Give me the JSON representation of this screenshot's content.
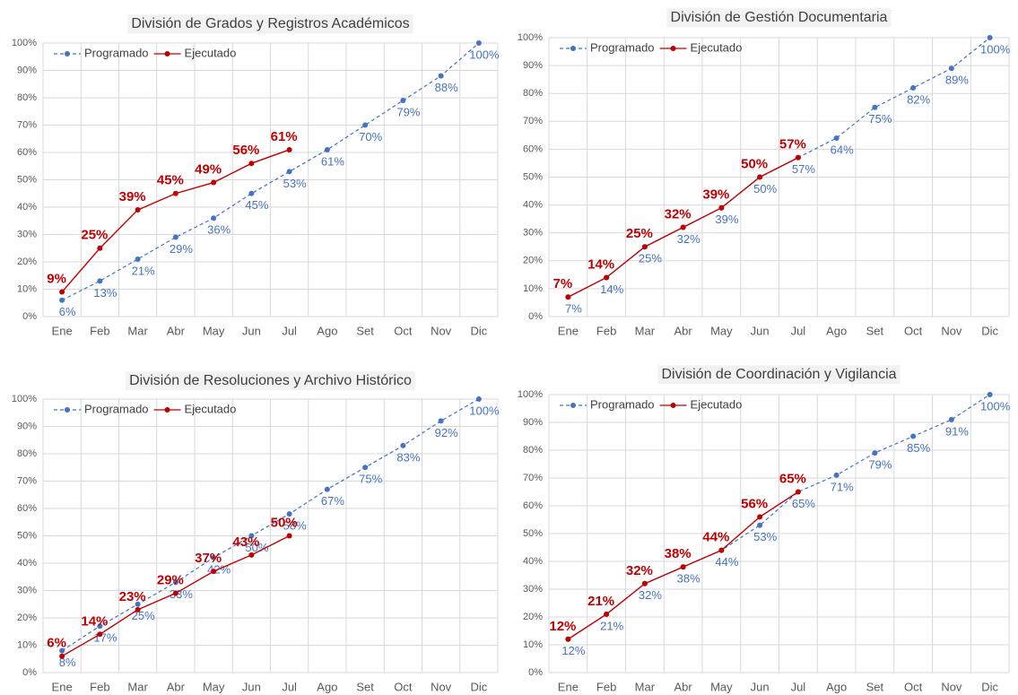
{
  "chart_data": [
    {
      "type": "line",
      "title": "División de Grados y Registros Académicos",
      "categories": [
        "Ene",
        "Feb",
        "Mar",
        "Abr",
        "May",
        "Jun",
        "Jul",
        "Ago",
        "Set",
        "Oct",
        "Nov",
        "Dic"
      ],
      "ylim": [
        0,
        100
      ],
      "yticks": [
        {
          "value": 0,
          "label": "0%"
        },
        {
          "value": 10,
          "label": "10%"
        },
        {
          "value": 20,
          "label": "20%"
        },
        {
          "value": 30,
          "label": "30%"
        },
        {
          "value": 40,
          "label": "40%"
        },
        {
          "value": 50,
          "label": "50%"
        },
        {
          "value": 60,
          "label": "60%"
        },
        {
          "value": 70,
          "label": "70%"
        },
        {
          "value": 80,
          "label": "80%"
        },
        {
          "value": 90,
          "label": "90%"
        },
        {
          "value": 100,
          "label": "100%"
        }
      ],
      "grid": true,
      "legend": "upper left",
      "series": [
        {
          "name": "Programado",
          "color": "#4472c4",
          "values": [
            6,
            13,
            21,
            29,
            36,
            45,
            53,
            61,
            70,
            79,
            88,
            100
          ],
          "value_labels": [
            "6%",
            "13%",
            "21%",
            "29%",
            "36%",
            "45%",
            "53%",
            "61%",
            "70%",
            "79%",
            "88%",
            "100%"
          ]
        },
        {
          "name": "Ejecutado",
          "color": "#c00000",
          "values": [
            9,
            25,
            39,
            45,
            49,
            56,
            61,
            null,
            null,
            null,
            null,
            null
          ],
          "value_labels": [
            "9%",
            "25%",
            "39%",
            "45%",
            "49%",
            "56%",
            "61%",
            null,
            null,
            null,
            null,
            null
          ]
        }
      ]
    },
    {
      "type": "line",
      "title": "División de Gestión Documentaria",
      "categories": [
        "Ene",
        "Feb",
        "Mar",
        "Abr",
        "May",
        "Jun",
        "Jul",
        "Ago",
        "Set",
        "Oct",
        "Nov",
        "Dic"
      ],
      "ylim": [
        0,
        100
      ],
      "yticks": [
        {
          "value": 0,
          "label": "0%"
        },
        {
          "value": 10,
          "label": "10%"
        },
        {
          "value": 20,
          "label": "20%"
        },
        {
          "value": 30,
          "label": "30%"
        },
        {
          "value": 40,
          "label": "40%"
        },
        {
          "value": 50,
          "label": "50%"
        },
        {
          "value": 60,
          "label": "60%"
        },
        {
          "value": 70,
          "label": "70%"
        },
        {
          "value": 80,
          "label": "80%"
        },
        {
          "value": 90,
          "label": "90%"
        },
        {
          "value": 100,
          "label": "100%"
        }
      ],
      "grid": true,
      "legend": "upper left",
      "series": [
        {
          "name": "Programado",
          "color": "#4472c4",
          "values": [
            7,
            14,
            25,
            32,
            39,
            50,
            57,
            64,
            75,
            82,
            89,
            100
          ],
          "value_labels": [
            "7%",
            "14%",
            "25%",
            "32%",
            "39%",
            "50%",
            "57%",
            "64%",
            "75%",
            "82%",
            "89%",
            "100%"
          ]
        },
        {
          "name": "Ejecutado",
          "color": "#c00000",
          "values": [
            7,
            14,
            25,
            32,
            39,
            50,
            57,
            null,
            null,
            null,
            null,
            null
          ],
          "value_labels": [
            "7%",
            "14%",
            "25%",
            "32%",
            "39%",
            "50%",
            "57%",
            null,
            null,
            null,
            null,
            null
          ]
        }
      ]
    },
    {
      "type": "line",
      "title": "División de Resoluciones y Archivo Histórico",
      "categories": [
        "Ene",
        "Feb",
        "Mar",
        "Abr",
        "May",
        "Jun",
        "Jul",
        "Ago",
        "Set",
        "Oct",
        "Nov",
        "Dic"
      ],
      "ylim": [
        0,
        100
      ],
      "yticks": [
        {
          "value": 0,
          "label": "0%"
        },
        {
          "value": 10,
          "label": "10%"
        },
        {
          "value": 20,
          "label": "20%"
        },
        {
          "value": 30,
          "label": "30%"
        },
        {
          "value": 40,
          "label": "40%"
        },
        {
          "value": 50,
          "label": "50%"
        },
        {
          "value": 60,
          "label": "60%"
        },
        {
          "value": 70,
          "label": "70%"
        },
        {
          "value": 80,
          "label": "80%"
        },
        {
          "value": 90,
          "label": "90%"
        },
        {
          "value": 100,
          "label": "100%"
        }
      ],
      "grid": true,
      "legend": "upper left",
      "series": [
        {
          "name": "Programado",
          "color": "#4472c4",
          "values": [
            8,
            17,
            25,
            33,
            42,
            50,
            58,
            67,
            75,
            83,
            92,
            100
          ],
          "value_labels": [
            "8%",
            "17%",
            "25%",
            "33%",
            "42%",
            "50%",
            "58%",
            "67%",
            "75%",
            "83%",
            "92%",
            "100%"
          ]
        },
        {
          "name": "Ejecutado",
          "color": "#c00000",
          "values": [
            6,
            14,
            23,
            29,
            37,
            43,
            50,
            null,
            null,
            null,
            null,
            null
          ],
          "value_labels": [
            "6%",
            "14%",
            "23%",
            "29%",
            "37%",
            "43%",
            "50%",
            null,
            null,
            null,
            null,
            null
          ]
        }
      ]
    },
    {
      "type": "line",
      "title": "División de Coordinación y Vigilancia",
      "categories": [
        "Ene",
        "Feb",
        "Mar",
        "Abr",
        "May",
        "Jun",
        "Jul",
        "Ago",
        "Set",
        "Oct",
        "Nov",
        "Dic"
      ],
      "ylim": [
        0,
        100
      ],
      "yticks": [
        {
          "value": 0,
          "label": "0%"
        },
        {
          "value": 10,
          "label": "10%"
        },
        {
          "value": 20,
          "label": "20%"
        },
        {
          "value": 30,
          "label": "30%"
        },
        {
          "value": 40,
          "label": "40%"
        },
        {
          "value": 50,
          "label": "50%"
        },
        {
          "value": 60,
          "label": "60%"
        },
        {
          "value": 70,
          "label": "70%"
        },
        {
          "value": 80,
          "label": "80%"
        },
        {
          "value": 90,
          "label": "90%"
        },
        {
          "value": 100,
          "label": "100%"
        }
      ],
      "grid": true,
      "legend": "upper left",
      "series": [
        {
          "name": "Programado",
          "color": "#4472c4",
          "values": [
            12,
            21,
            32,
            38,
            44,
            53,
            65,
            71,
            79,
            85,
            91,
            100
          ],
          "value_labels": [
            "12%",
            "21%",
            "32%",
            "38%",
            "44%",
            "53%",
            "65%",
            "71%",
            "79%",
            "85%",
            "91%",
            "100%"
          ]
        },
        {
          "name": "Ejecutado",
          "color": "#c00000",
          "values": [
            12,
            21,
            32,
            38,
            44,
            56,
            65,
            null,
            null,
            null,
            null,
            null
          ],
          "value_labels": [
            "12%",
            "21%",
            "32%",
            "38%",
            "44%",
            "56%",
            "65%",
            null,
            null,
            null,
            null,
            null
          ]
        }
      ]
    }
  ]
}
